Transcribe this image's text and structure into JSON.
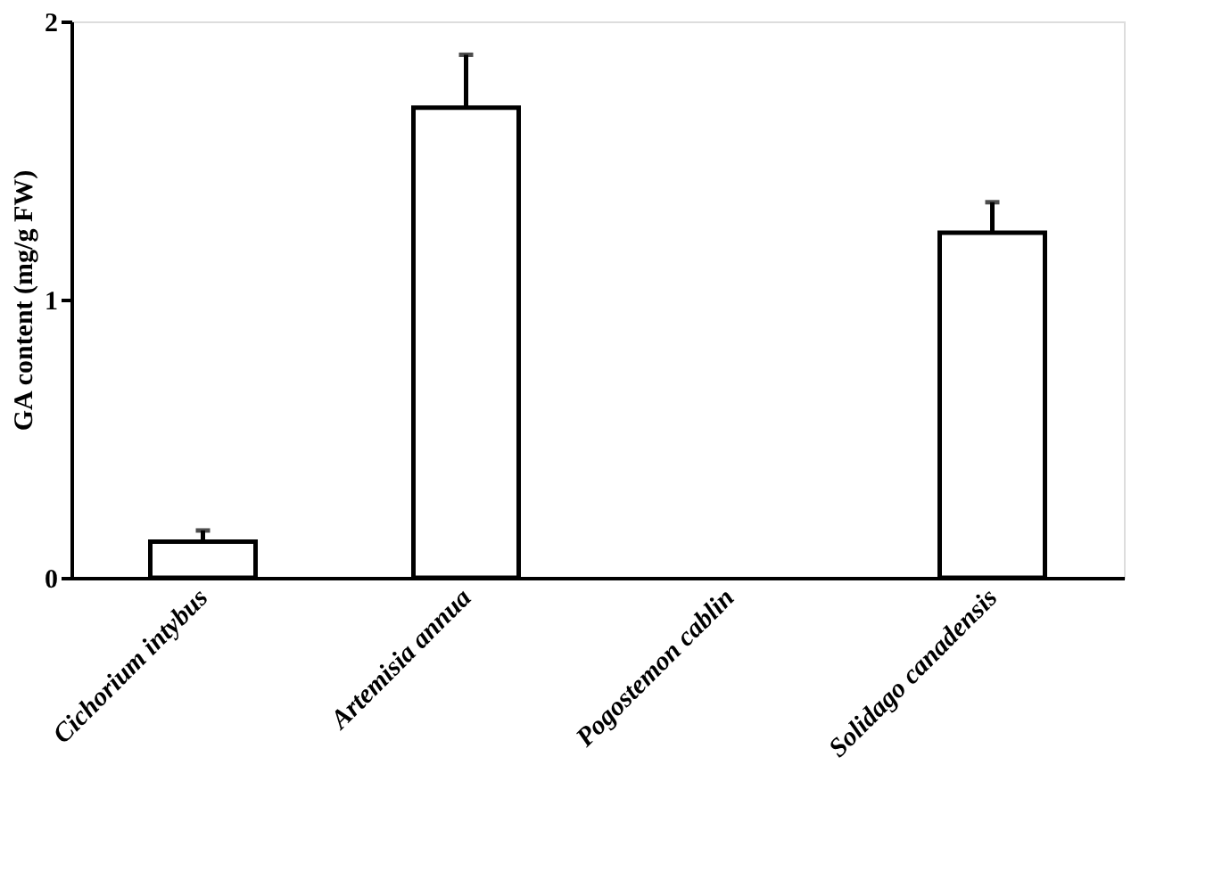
{
  "chart_data": {
    "type": "bar",
    "ylabel": "GA content (mg/g FW)",
    "categories": [
      "Cichorium intybus",
      "Artemisia annua",
      "Pogostemon cablin",
      "Solidago canadensis"
    ],
    "values": [
      0.13,
      1.69,
      0,
      1.24
    ],
    "errors": [
      [
        0.13,
        0.17
      ],
      [
        1.69,
        1.88
      ],
      null,
      [
        1.24,
        1.35
      ]
    ],
    "color": "#ffffff",
    "ylim": [
      0,
      2
    ],
    "yticks": [
      0,
      1,
      2
    ],
    "grid": false
  }
}
